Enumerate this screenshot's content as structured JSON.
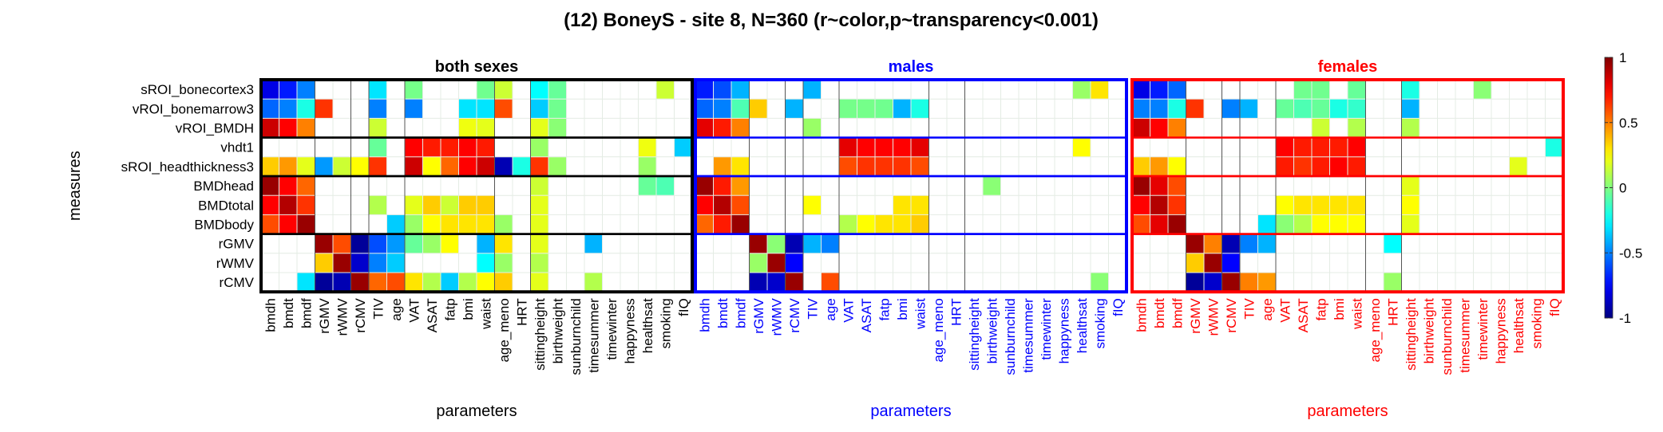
{
  "title": "(12) BoneyS - site 8, N=360 (r~color,p~transparency<0.001)",
  "ylabel": "measures",
  "rows": [
    "sROI_bonecortex3",
    "vROI_bonemarrow3",
    "vROI_BMDH",
    "vhdt1",
    "sROI_headthickness3",
    "BMDhead",
    "BMDtotal",
    "BMDbody",
    "rGMV",
    "rWMV",
    "rCMV"
  ],
  "cols": [
    "bmdh",
    "bmdt",
    "bmdf",
    "rGMV",
    "rWMV",
    "rCMV",
    "TIV",
    "age",
    "VAT",
    "ASAT",
    "fatp",
    "bmi",
    "waist",
    "age_meno",
    "HRT",
    "sittingheight",
    "birthweight",
    "sunburnchild",
    "timesummer",
    "timewinter",
    "happyness",
    "healthsat",
    "smoking",
    "fIQ"
  ],
  "colorbar": {
    "ticks": [
      "1",
      "0.5",
      "0",
      "-0.5",
      "-1"
    ],
    "range": [
      -1,
      1
    ],
    "colormap": "jet"
  },
  "chart_data": [
    {
      "type": "heatmap",
      "title": "both sexes",
      "xlabel": "parameters",
      "color": "#000000",
      "cells": [
        [
          [
            0,
            -0.8
          ],
          [
            1,
            -0.7
          ],
          [
            2,
            -0.5
          ],
          [
            6,
            -0.3
          ],
          [
            8,
            -0.02
          ],
          [
            12,
            -0.03
          ],
          [
            13,
            0.15
          ],
          [
            15,
            -0.25
          ],
          [
            16,
            -0.05
          ],
          [
            22,
            0.15
          ]
        ],
        [
          [
            0,
            -0.55
          ],
          [
            1,
            -0.5
          ],
          [
            2,
            -0.2
          ],
          [
            3,
            0.65
          ],
          [
            6,
            -0.5
          ],
          [
            8,
            -0.5
          ],
          [
            11,
            -0.3
          ],
          [
            12,
            -0.3
          ],
          [
            13,
            0.6
          ],
          [
            15,
            -0.35
          ],
          [
            16,
            -0.03
          ]
        ],
        [
          [
            0,
            0.85
          ],
          [
            1,
            0.75
          ],
          [
            2,
            0.5
          ],
          [
            6,
            0.15
          ],
          [
            11,
            0.22
          ],
          [
            12,
            0.2
          ],
          [
            15,
            0.2
          ],
          [
            16,
            0.02
          ]
        ],
        [
          [
            6,
            -0.05
          ],
          [
            8,
            0.75
          ],
          [
            9,
            0.7
          ],
          [
            10,
            0.7
          ],
          [
            11,
            0.75
          ],
          [
            12,
            0.7
          ],
          [
            15,
            0.05
          ],
          [
            21,
            0.22
          ],
          [
            23,
            -0.35
          ]
        ],
        [
          [
            0,
            0.35
          ],
          [
            1,
            0.45
          ],
          [
            2,
            0.2
          ],
          [
            3,
            -0.45
          ],
          [
            4,
            0.15
          ],
          [
            5,
            0.25
          ],
          [
            6,
            0.65
          ],
          [
            8,
            0.85
          ],
          [
            9,
            0.25
          ],
          [
            10,
            0.55
          ],
          [
            11,
            0.75
          ],
          [
            12,
            0.85
          ],
          [
            13,
            -0.9
          ],
          [
            14,
            -0.2
          ],
          [
            15,
            0.65
          ],
          [
            16,
            0.05
          ],
          [
            21,
            0.05
          ]
        ],
        [
          [
            0,
            0.95
          ],
          [
            1,
            0.75
          ],
          [
            2,
            0.55
          ],
          [
            15,
            0.15
          ],
          [
            21,
            -0.05
          ],
          [
            22,
            -0.1
          ]
        ],
        [
          [
            0,
            0.75
          ],
          [
            1,
            0.9
          ],
          [
            2,
            0.65
          ],
          [
            6,
            0.1
          ],
          [
            8,
            0.2
          ],
          [
            9,
            0.35
          ],
          [
            10,
            0.15
          ],
          [
            11,
            0.35
          ],
          [
            12,
            0.35
          ],
          [
            15,
            0.2
          ]
        ],
        [
          [
            0,
            0.6
          ],
          [
            1,
            0.75
          ],
          [
            2,
            0.95
          ],
          [
            7,
            -0.35
          ],
          [
            8,
            0.05
          ],
          [
            9,
            0.25
          ],
          [
            10,
            0.3
          ],
          [
            11,
            0.3
          ],
          [
            12,
            0.3
          ],
          [
            13,
            0.05
          ],
          [
            15,
            0.2
          ]
        ],
        [
          [
            3,
            0.95
          ],
          [
            4,
            0.6
          ],
          [
            5,
            -0.95
          ],
          [
            6,
            -0.6
          ],
          [
            7,
            -0.45
          ],
          [
            8,
            -0.05
          ],
          [
            9,
            0.05
          ],
          [
            10,
            0.25
          ],
          [
            12,
            -0.4
          ],
          [
            13,
            0.3
          ],
          [
            15,
            0.2
          ],
          [
            18,
            -0.4
          ]
        ],
        [
          [
            3,
            0.35
          ],
          [
            4,
            0.95
          ],
          [
            5,
            -0.85
          ],
          [
            6,
            -0.5
          ],
          [
            7,
            -0.35
          ],
          [
            12,
            -0.25
          ],
          [
            13,
            0.05
          ],
          [
            15,
            0.1
          ]
        ],
        [
          [
            2,
            -0.3
          ],
          [
            3,
            -0.95
          ],
          [
            4,
            -0.9
          ],
          [
            5,
            0.95
          ],
          [
            6,
            0.55
          ],
          [
            7,
            0.6
          ],
          [
            8,
            0.3
          ],
          [
            9,
            0.1
          ],
          [
            10,
            -0.35
          ],
          [
            11,
            0.1
          ],
          [
            12,
            0.25
          ],
          [
            13,
            0.35
          ],
          [
            15,
            0.2
          ],
          [
            18,
            0.1
          ]
        ]
      ]
    },
    {
      "type": "heatmap",
      "title": "males",
      "xlabel": "parameters",
      "color": "#0000ff",
      "cells": [
        [
          [
            0,
            -0.7
          ],
          [
            1,
            -0.6
          ],
          [
            2,
            -0.4
          ],
          [
            6,
            -0.4
          ],
          [
            21,
            0.05
          ],
          [
            22,
            0.3
          ]
        ],
        [
          [
            0,
            -0.55
          ],
          [
            1,
            -0.5
          ],
          [
            2,
            -0.1
          ],
          [
            3,
            0.35
          ],
          [
            5,
            -0.4
          ],
          [
            8,
            -0.02
          ],
          [
            9,
            -0.02
          ],
          [
            10,
            -0.03
          ],
          [
            11,
            -0.4
          ],
          [
            12,
            -0.2
          ]
        ],
        [
          [
            0,
            0.8
          ],
          [
            1,
            0.7
          ],
          [
            2,
            0.5
          ],
          [
            6,
            0.05
          ]
        ],
        [
          [
            8,
            0.8
          ],
          [
            9,
            0.75
          ],
          [
            10,
            0.75
          ],
          [
            11,
            0.75
          ],
          [
            12,
            0.8
          ],
          [
            21,
            0.25
          ]
        ],
        [
          [
            1,
            0.45
          ],
          [
            2,
            0.3
          ],
          [
            8,
            0.6
          ],
          [
            9,
            0.65
          ],
          [
            10,
            0.65
          ],
          [
            11,
            0.65
          ],
          [
            12,
            0.6
          ]
        ],
        [
          [
            0,
            0.95
          ],
          [
            1,
            0.7
          ],
          [
            2,
            0.45
          ],
          [
            16,
            0.02
          ]
        ],
        [
          [
            0,
            0.75
          ],
          [
            1,
            0.9
          ],
          [
            2,
            0.6
          ],
          [
            6,
            0.25
          ],
          [
            11,
            0.3
          ],
          [
            12,
            0.3
          ]
        ],
        [
          [
            0,
            0.55
          ],
          [
            1,
            0.7
          ],
          [
            2,
            0.95
          ],
          [
            8,
            0.1
          ],
          [
            9,
            0.25
          ],
          [
            10,
            0.3
          ],
          [
            11,
            0.3
          ],
          [
            12,
            0.35
          ]
        ],
        [
          [
            3,
            0.95
          ],
          [
            4,
            0.02
          ],
          [
            5,
            -0.9
          ],
          [
            6,
            -0.4
          ],
          [
            7,
            -0.5
          ]
        ],
        [
          [
            3,
            0.05
          ],
          [
            4,
            0.95
          ],
          [
            5,
            -0.75
          ]
        ],
        [
          [
            3,
            -0.9
          ],
          [
            4,
            -0.85
          ],
          [
            5,
            0.95
          ],
          [
            7,
            0.6
          ],
          [
            22,
            0.02
          ]
        ]
      ]
    },
    {
      "type": "heatmap",
      "title": "females",
      "xlabel": "parameters",
      "color": "#ff0000",
      "cells": [
        [
          [
            0,
            -0.8
          ],
          [
            1,
            -0.7
          ],
          [
            2,
            -0.55
          ],
          [
            9,
            -0.03
          ],
          [
            10,
            -0.03
          ],
          [
            12,
            -0.05
          ],
          [
            15,
            -0.2
          ],
          [
            19,
            0.02
          ]
        ],
        [
          [
            0,
            -0.5
          ],
          [
            1,
            -0.5
          ],
          [
            2,
            -0.2
          ],
          [
            3,
            0.65
          ],
          [
            5,
            -0.5
          ],
          [
            6,
            -0.4
          ],
          [
            8,
            -0.05
          ],
          [
            9,
            -0.1
          ],
          [
            10,
            -0.05
          ],
          [
            11,
            -0.2
          ],
          [
            12,
            -0.15
          ],
          [
            15,
            -0.4
          ]
        ],
        [
          [
            0,
            0.85
          ],
          [
            1,
            0.75
          ],
          [
            2,
            0.5
          ],
          [
            10,
            0.15
          ],
          [
            12,
            0.1
          ],
          [
            15,
            0.1
          ]
        ],
        [
          [
            8,
            0.75
          ],
          [
            9,
            0.7
          ],
          [
            10,
            0.7
          ],
          [
            11,
            0.7
          ],
          [
            12,
            0.75
          ],
          [
            23,
            -0.2
          ]
        ],
        [
          [
            0,
            0.35
          ],
          [
            1,
            0.45
          ],
          [
            2,
            0.25
          ],
          [
            8,
            0.7
          ],
          [
            9,
            0.65
          ],
          [
            10,
            0.7
          ],
          [
            11,
            0.75
          ],
          [
            12,
            0.7
          ],
          [
            21,
            0.2
          ]
        ],
        [
          [
            0,
            0.95
          ],
          [
            1,
            0.8
          ],
          [
            2,
            0.6
          ],
          [
            15,
            0.2
          ]
        ],
        [
          [
            0,
            0.75
          ],
          [
            1,
            0.9
          ],
          [
            2,
            0.65
          ],
          [
            8,
            0.25
          ],
          [
            9,
            0.3
          ],
          [
            10,
            0.3
          ],
          [
            11,
            0.3
          ],
          [
            12,
            0.3
          ],
          [
            15,
            0.25
          ]
        ],
        [
          [
            0,
            0.6
          ],
          [
            1,
            0.8
          ],
          [
            2,
            0.95
          ],
          [
            7,
            -0.3
          ],
          [
            8,
            0.02
          ],
          [
            9,
            0.1
          ],
          [
            10,
            0.25
          ],
          [
            11,
            0.25
          ],
          [
            12,
            0.25
          ],
          [
            15,
            0.2
          ]
        ],
        [
          [
            3,
            0.95
          ],
          [
            4,
            0.5
          ],
          [
            5,
            -0.9
          ],
          [
            6,
            -0.5
          ],
          [
            7,
            -0.4
          ],
          [
            14,
            -0.25
          ]
        ],
        [
          [
            3,
            0.35
          ],
          [
            4,
            0.95
          ],
          [
            5,
            -0.75
          ]
        ],
        [
          [
            3,
            -0.95
          ],
          [
            4,
            -0.85
          ],
          [
            5,
            0.95
          ],
          [
            6,
            0.5
          ],
          [
            7,
            0.45
          ],
          [
            14,
            0.05
          ]
        ]
      ]
    }
  ]
}
